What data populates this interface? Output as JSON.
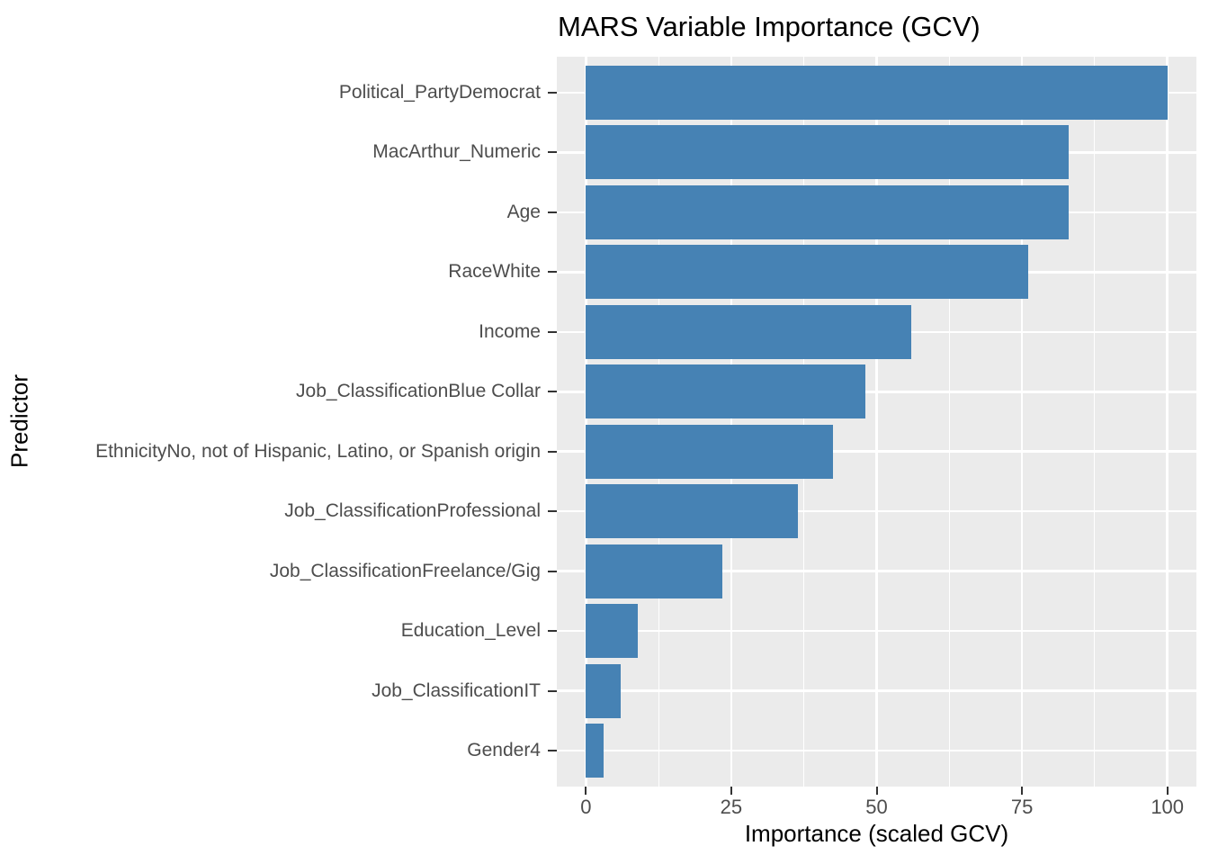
{
  "chart_data": {
    "type": "bar",
    "orientation": "horizontal",
    "title": "MARS Variable Importance (GCV)",
    "xlabel": "Importance (scaled GCV)",
    "ylabel": "Predictor",
    "categories": [
      "Political_PartyDemocrat",
      "MacArthur_Numeric",
      "Age",
      "RaceWhite",
      "Income",
      "Job_ClassificationBlue Collar",
      "EthnicityNo, not of Hispanic, Latino, or Spanish origin",
      "Job_ClassificationProfessional",
      "Job_ClassificationFreelance/Gig",
      "Education_Level",
      "Job_ClassificationIT",
      "Gender4"
    ],
    "values": [
      100,
      83,
      83,
      76,
      56,
      48,
      42.5,
      36.5,
      23.5,
      9,
      6,
      3
    ],
    "xlim": [
      -5,
      105
    ],
    "x_major_ticks": [
      0,
      25,
      50,
      75,
      100
    ],
    "x_major_tick_labels": [
      "0",
      "25",
      "50",
      "75",
      "100"
    ],
    "x_minor_gridlines": [
      12.5,
      37.5,
      62.5,
      87.5
    ],
    "grid": true,
    "legend": false,
    "colors": {
      "bar": "#4682B4",
      "panel_bg": "#EBEBEB",
      "grid": "#FFFFFF",
      "tick_mark": "#333333",
      "tick_label": "#4D4D4D",
      "axis_title": "#000000",
      "title": "#000000",
      "background": "#FFFFFF"
    }
  }
}
